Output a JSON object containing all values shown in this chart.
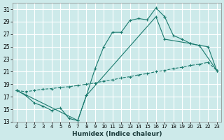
{
  "xlabel": "Humidex (Indice chaleur)",
  "background_color": "#cdeaea",
  "grid_color": "#b8d8d8",
  "line_color": "#1a7a6e",
  "xlim": [
    -0.5,
    23.5
  ],
  "ylim": [
    13,
    32
  ],
  "xticks": [
    0,
    1,
    2,
    3,
    4,
    5,
    6,
    7,
    8,
    9,
    10,
    11,
    12,
    13,
    14,
    15,
    16,
    17,
    18,
    19,
    20,
    21,
    22,
    23
  ],
  "yticks": [
    13,
    15,
    17,
    19,
    21,
    23,
    25,
    27,
    29,
    31
  ],
  "curve1_x": [
    0,
    1,
    2,
    3,
    4,
    5,
    6,
    7,
    8,
    9,
    10,
    11,
    12,
    13,
    14,
    15,
    16,
    17
  ],
  "curve1_y": [
    18.0,
    17.2,
    16.0,
    15.5,
    14.8,
    15.2,
    13.5,
    13.2,
    17.2,
    21.5,
    25.0,
    27.3,
    27.3,
    29.2,
    29.5,
    29.3,
    31.2,
    29.8
  ],
  "curve1b_x": [
    17,
    18,
    19,
    20,
    21,
    22,
    23
  ],
  "curve1b_y": [
    29.8,
    26.8,
    26.2,
    25.5,
    25.2,
    25.0,
    21.2
  ],
  "curve2_x": [
    0,
    7,
    8,
    16,
    17,
    20,
    21,
    23
  ],
  "curve2_y": [
    18.0,
    13.2,
    17.2,
    29.8,
    26.2,
    25.5,
    25.2,
    21.2
  ],
  "curve3_x": [
    0,
    1,
    2,
    3,
    4,
    5,
    6,
    7,
    8,
    9,
    10,
    11,
    12,
    13,
    14,
    15,
    16,
    17,
    18,
    19,
    20,
    21,
    22,
    23
  ],
  "curve3_y": [
    18.0,
    17.8,
    18.0,
    18.2,
    18.3,
    18.5,
    18.6,
    18.8,
    19.0,
    19.2,
    19.5,
    19.7,
    20.0,
    20.2,
    20.5,
    20.7,
    21.0,
    21.2,
    21.5,
    21.7,
    22.0,
    22.2,
    22.5,
    21.2
  ]
}
